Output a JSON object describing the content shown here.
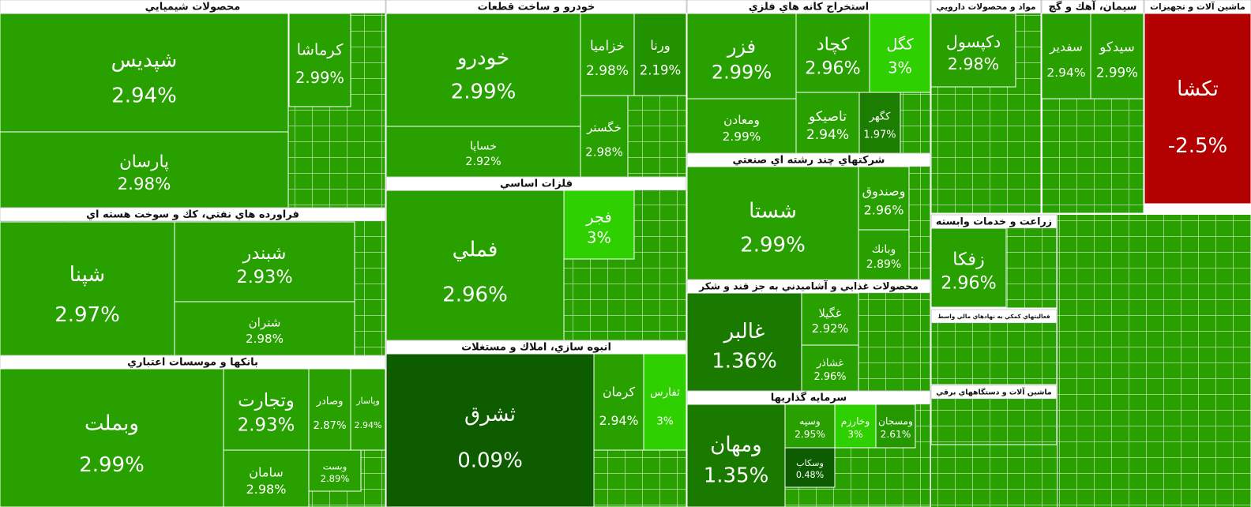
{
  "chart_data": {
    "type": "treemap",
    "sectors": [
      {
        "name": "محصولات شيميايي",
        "tiles": [
          {
            "name": "شپديس",
            "change": "2.94%",
            "color": "#27a000"
          },
          {
            "name": "پارسان",
            "change": "2.98%",
            "color": "#27a000"
          },
          {
            "name": "كرماشا",
            "change": "2.99%",
            "color": "#27a000"
          }
        ]
      },
      {
        "name": "فراورده هاي نفتي، كك و سوخت هسته اي",
        "tiles": [
          {
            "name": "شپنا",
            "change": "2.97%",
            "color": "#27a000"
          },
          {
            "name": "شبندر",
            "change": "2.93%",
            "color": "#27a000"
          },
          {
            "name": "شتران",
            "change": "2.98%",
            "color": "#27a000"
          }
        ]
      },
      {
        "name": "بانكها و موسسات اعتباري",
        "tiles": [
          {
            "name": "وبملت",
            "change": "2.99%",
            "color": "#27a000"
          },
          {
            "name": "وتجارت",
            "change": "2.93%",
            "color": "#27a000"
          },
          {
            "name": "سامان",
            "change": "2.98%",
            "color": "#27a000"
          },
          {
            "name": "وصادر",
            "change": "2.87%",
            "color": "#27a000"
          },
          {
            "name": "وپاسار",
            "change": "2.94%",
            "color": "#27a000"
          },
          {
            "name": "وبست",
            "change": "2.89%",
            "color": "#27a000"
          }
        ]
      },
      {
        "name": "خودرو و ساخت قطعات",
        "tiles": [
          {
            "name": "خودرو",
            "change": "2.99%",
            "color": "#27a000"
          },
          {
            "name": "خساپا",
            "change": "2.92%",
            "color": "#27a000"
          },
          {
            "name": "خزاميا",
            "change": "2.98%",
            "color": "#27a000"
          },
          {
            "name": "ورنا",
            "change": "2.19%",
            "color": "#239200"
          },
          {
            "name": "خگستر",
            "change": "2.98%",
            "color": "#27a000"
          }
        ]
      },
      {
        "name": "فلزات اساسي",
        "tiles": [
          {
            "name": "فملي",
            "change": "2.96%",
            "color": "#27a000"
          },
          {
            "name": "فجر",
            "change": "3%",
            "color": "#2ed000"
          }
        ]
      },
      {
        "name": "انبوه سازي، املاك و مستغلات",
        "tiles": [
          {
            "name": "ثشرق",
            "change": "0.09%",
            "color": "#0d5c00"
          },
          {
            "name": "كرمان",
            "change": "2.94%",
            "color": "#27a000"
          },
          {
            "name": "ثفارس",
            "change": "3%",
            "color": "#2ed000"
          }
        ]
      },
      {
        "name": "استخراج كانه هاي فلزي",
        "tiles": [
          {
            "name": "فزر",
            "change": "2.99%",
            "color": "#27a000"
          },
          {
            "name": "كچاد",
            "change": "2.96%",
            "color": "#27a000"
          },
          {
            "name": "كگل",
            "change": "3%",
            "color": "#2ed000"
          },
          {
            "name": "ومعادن",
            "change": "2.99%",
            "color": "#27a000"
          },
          {
            "name": "تاصيكو",
            "change": "2.94%",
            "color": "#27a000"
          },
          {
            "name": "كگهر",
            "change": "1.97%",
            "color": "#1c7e00"
          }
        ]
      },
      {
        "name": "شركتهاي چند رشته اي صنعتي",
        "tiles": [
          {
            "name": "شستا",
            "change": "2.99%",
            "color": "#27a000"
          },
          {
            "name": "وصندوق",
            "change": "2.96%",
            "color": "#27a000"
          },
          {
            "name": "وبانك",
            "change": "2.89%",
            "color": "#27a000"
          }
        ]
      },
      {
        "name": "محصولات غذايي و آشاميدني به جز قند و شكر",
        "tiles": [
          {
            "name": "غالبر",
            "change": "1.36%",
            "color": "#1a7a00"
          },
          {
            "name": "غگيلا",
            "change": "2.92%",
            "color": "#27a000"
          },
          {
            "name": "غشاذر",
            "change": "2.96%",
            "color": "#27a000"
          }
        ]
      },
      {
        "name": "سرمايه گذاريها",
        "tiles": [
          {
            "name": "ومهان",
            "change": "1.35%",
            "color": "#1a7a00"
          },
          {
            "name": "وسپه",
            "change": "2.95%",
            "color": "#27a000"
          },
          {
            "name": "وسكاب",
            "change": "0.48%",
            "color": "#0d5c00"
          },
          {
            "name": "وخارزم",
            "change": "3%",
            "color": "#2ed000"
          },
          {
            "name": "ومسجان",
            "change": "2.61%",
            "color": "#259800"
          }
        ]
      },
      {
        "name": "مواد و محصولات دارويي",
        "tiles": [
          {
            "name": "دكپسول",
            "change": "2.98%",
            "color": "#27a000"
          }
        ]
      },
      {
        "name": "سيمان، آهك و گچ",
        "tiles": [
          {
            "name": "سفدير",
            "change": "2.94%",
            "color": "#27a000"
          },
          {
            "name": "سيدكو",
            "change": "2.99%",
            "color": "#27a000"
          }
        ]
      },
      {
        "name": "ماشين آلات و تجهيزات",
        "tiles": [
          {
            "name": "تكشا",
            "change": "-2.5%",
            "color": "#b30000"
          }
        ]
      },
      {
        "name": "زراعت و خدمات وابسته",
        "tiles": [
          {
            "name": "زفكا",
            "change": "2.96%",
            "color": "#27a000"
          }
        ]
      },
      {
        "name": "فعاليتهاي كمكي به نهادهاي مالي واسط",
        "tiles": []
      },
      {
        "name": "ماشين آلات و دستگاههاي برقي",
        "tiles": []
      }
    ]
  }
}
